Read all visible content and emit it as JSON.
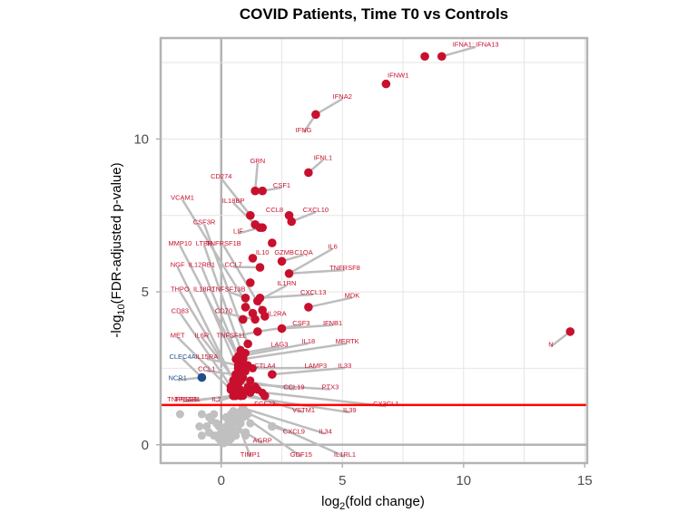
{
  "chart_data": {
    "type": "scatter",
    "subtype": "volcano",
    "title": "COVID Patients, Time T0 vs Controls",
    "xlabel": "log2(fold change)",
    "ylabel": "-log10(FDR-adjusted p-value)",
    "xlim": [
      -2.5,
      15.1
    ],
    "ylim": [
      -0.6,
      13.3
    ],
    "xticks": [
      0,
      5,
      10,
      15
    ],
    "yticks": [
      0,
      5,
      10
    ],
    "grid": true,
    "significance_threshold_y": 1.3,
    "colors": {
      "up": "#c8102e",
      "down": "#1f4e8c",
      "ns": "#c0c0c0",
      "threshold": "#ff0000",
      "connector": "#bdbdbd"
    },
    "points": [
      {
        "label": "IFNA1; IFNA13",
        "x": 9.1,
        "y": 12.7,
        "group": "up",
        "lx": 10.5,
        "ly": 13.1
      },
      {
        "label": "",
        "x": 8.4,
        "y": 12.7,
        "group": "up"
      },
      {
        "label": "IFNW1",
        "x": 6.8,
        "y": 11.8,
        "group": "up",
        "lx": 7.3,
        "ly": 12.1
      },
      {
        "label": "IFNA2",
        "x": 3.9,
        "y": 10.8,
        "group": "up",
        "lx": 5.0,
        "ly": 11.4
      },
      {
        "label": "IFNG",
        "x": 3.9,
        "y": 10.8,
        "group": "up",
        "lx": 3.4,
        "ly": 10.3,
        "hide_point": true
      },
      {
        "label": "IFNL1",
        "x": 3.6,
        "y": 8.9,
        "group": "up",
        "lx": 4.2,
        "ly": 9.4
      },
      {
        "label": "GRN",
        "x": 1.4,
        "y": 8.3,
        "group": "up",
        "lx": 1.5,
        "ly": 9.3
      },
      {
        "label": "CSF1",
        "x": 1.7,
        "y": 8.3,
        "group": "up",
        "lx": 2.5,
        "ly": 8.5
      },
      {
        "label": "CD274",
        "x": 1.2,
        "y": 7.5,
        "group": "up",
        "lx": 0.0,
        "ly": 8.8
      },
      {
        "label": "IL18BP",
        "x": 1.4,
        "y": 7.2,
        "group": "up",
        "lx": 0.5,
        "ly": 8.0
      },
      {
        "label": "CCL8",
        "x": 2.8,
        "y": 7.5,
        "group": "up",
        "lx": 2.2,
        "ly": 7.7
      },
      {
        "label": "CXCL10",
        "x": 2.9,
        "y": 7.3,
        "group": "up",
        "lx": 3.9,
        "ly": 7.7
      },
      {
        "label": "LIF",
        "x": 1.6,
        "y": 7.1,
        "group": "up",
        "lx": 0.7,
        "ly": 7.0
      },
      {
        "label": "",
        "x": 1.7,
        "y": 7.1,
        "group": "up"
      },
      {
        "label": "VCAM1",
        "x": 1.3,
        "y": 4.3,
        "group": "up",
        "lx": -1.6,
        "ly": 8.1
      },
      {
        "label": "CSF3R",
        "x": 1.1,
        "y": 3.3,
        "group": "up",
        "lx": -0.7,
        "ly": 7.3
      },
      {
        "label": "GZMB",
        "x": 2.1,
        "y": 6.6,
        "group": "up",
        "lx": 2.6,
        "ly": 6.3
      },
      {
        "label": "MMP10",
        "x": 0.8,
        "y": 2.7,
        "group": "up",
        "lx": -1.7,
        "ly": 6.6
      },
      {
        "label": "LTBR",
        "x": 0.9,
        "y": 2.9,
        "group": "up",
        "lx": -0.7,
        "ly": 6.6
      },
      {
        "label": "TNFRSF1B",
        "x": 1.7,
        "y": 4.4,
        "group": "up",
        "lx": 0.1,
        "ly": 6.6
      },
      {
        "label": "IL10",
        "x": 1.3,
        "y": 6.1,
        "group": "up",
        "lx": 1.7,
        "ly": 6.3
      },
      {
        "label": "C1QA",
        "x": 2.5,
        "y": 6.0,
        "group": "up",
        "lx": 3.4,
        "ly": 6.3
      },
      {
        "label": "IL6",
        "x": 2.8,
        "y": 5.6,
        "group": "up",
        "lx": 4.6,
        "ly": 6.5
      },
      {
        "label": "NGF",
        "x": 0.5,
        "y": 2.1,
        "group": "up",
        "lx": -1.8,
        "ly": 5.9
      },
      {
        "label": "IL12RB1",
        "x": 0.9,
        "y": 2.5,
        "group": "up",
        "lx": -0.8,
        "ly": 5.9
      },
      {
        "label": "CCL7",
        "x": 1.6,
        "y": 5.8,
        "group": "up",
        "lx": 0.5,
        "ly": 5.9
      },
      {
        "label": "TNFRSF8",
        "x": 2.8,
        "y": 5.6,
        "group": "up",
        "lx": 5.1,
        "ly": 5.8,
        "hide_point": true
      },
      {
        "label": "",
        "x": 1.2,
        "y": 5.3,
        "group": "up"
      },
      {
        "label": "IL1RN",
        "x": 1.5,
        "y": 4.7,
        "group": "up",
        "lx": 2.7,
        "ly": 5.3
      },
      {
        "label": "THPO",
        "x": 0.6,
        "y": 2.0,
        "group": "up",
        "lx": -1.7,
        "ly": 5.1
      },
      {
        "label": "IL18R1",
        "x": 0.8,
        "y": 2.3,
        "group": "up",
        "lx": -0.7,
        "ly": 5.1
      },
      {
        "label": "TNFSF13B",
        "x": 1.0,
        "y": 4.8,
        "group": "up",
        "lx": 0.3,
        "ly": 5.1
      },
      {
        "label": "CXCL13",
        "x": 1.6,
        "y": 4.8,
        "group": "up",
        "lx": 3.8,
        "ly": 5.0
      },
      {
        "label": "MDK",
        "x": 3.6,
        "y": 4.5,
        "group": "up",
        "lx": 5.4,
        "ly": 4.9
      },
      {
        "label": "",
        "x": 1.0,
        "y": 4.5,
        "group": "up"
      },
      {
        "label": "CD83",
        "x": 0.4,
        "y": 1.9,
        "group": "up",
        "lx": -1.7,
        "ly": 4.4
      },
      {
        "label": "CD70",
        "x": 1.4,
        "y": 4.1,
        "group": "up",
        "lx": 0.1,
        "ly": 4.4
      },
      {
        "label": "IL2RA",
        "x": 1.8,
        "y": 4.2,
        "group": "up",
        "lx": 2.3,
        "ly": 4.3
      },
      {
        "label": "",
        "x": 0.9,
        "y": 4.1,
        "group": "up"
      },
      {
        "label": "CSF3",
        "x": 1.5,
        "y": 3.7,
        "group": "up",
        "lx": 3.3,
        "ly": 4.0
      },
      {
        "label": "IFNB1",
        "x": 2.5,
        "y": 3.8,
        "group": "up",
        "lx": 4.6,
        "ly": 4.0
      },
      {
        "label": "MET",
        "x": 0.4,
        "y": 1.8,
        "group": "up",
        "lx": -1.8,
        "ly": 3.6
      },
      {
        "label": "IL6R",
        "x": 0.6,
        "y": 2.1,
        "group": "up",
        "lx": -0.8,
        "ly": 3.6
      },
      {
        "label": "TNFSF11",
        "x": 1.5,
        "y": 3.7,
        "group": "up",
        "lx": 0.4,
        "ly": 3.6,
        "hide_point": true
      },
      {
        "label": "LAG3",
        "x": 0.9,
        "y": 3.0,
        "group": "up",
        "lx": 2.4,
        "ly": 3.3
      },
      {
        "label": "IL18",
        "x": 0.8,
        "y": 2.9,
        "group": "up",
        "lx": 3.6,
        "ly": 3.4
      },
      {
        "label": "MERTK",
        "x": 0.9,
        "y": 2.8,
        "group": "up",
        "lx": 5.2,
        "ly": 3.4
      },
      {
        "label": "CLEC4A",
        "x": -0.8,
        "y": 2.2,
        "group": "down",
        "lx": -1.6,
        "ly": 2.9
      },
      {
        "label": "IL15RA",
        "x": 0.7,
        "y": 2.6,
        "group": "up",
        "lx": -0.6,
        "ly": 2.9
      },
      {
        "label": "CTLA4",
        "x": 1.0,
        "y": 2.6,
        "group": "up",
        "lx": 1.8,
        "ly": 2.6
      },
      {
        "label": "LAMP3",
        "x": 0.7,
        "y": 2.5,
        "group": "up",
        "lx": 3.9,
        "ly": 2.6
      },
      {
        "label": "IL33",
        "x": 2.1,
        "y": 2.3,
        "group": "up",
        "lx": 5.1,
        "ly": 2.6
      },
      {
        "label": "CCL1",
        "x": 0.6,
        "y": 2.3,
        "group": "up",
        "lx": -0.6,
        "ly": 2.5
      },
      {
        "label": "NCR1",
        "x": -0.8,
        "y": 2.2,
        "group": "down",
        "lx": -1.8,
        "ly": 2.2,
        "hide_point": true
      },
      {
        "label": "CCL19",
        "x": 0.8,
        "y": 2.1,
        "group": "up",
        "lx": 3.0,
        "ly": 1.9
      },
      {
        "label": "PTX3",
        "x": 0.7,
        "y": 2.0,
        "group": "up",
        "lx": 4.5,
        "ly": 1.9
      },
      {
        "label": "TNFRSF9",
        "x": 0.5,
        "y": 1.6,
        "group": "up",
        "lx": -1.6,
        "ly": 1.5
      },
      {
        "label": "TPSAB1",
        "x": 0.5,
        "y": 1.6,
        "group": "up",
        "lx": -1.4,
        "ly": 1.5,
        "hide_point": true
      },
      {
        "label": "IL7",
        "x": 0.6,
        "y": 1.6,
        "group": "up",
        "lx": -0.2,
        "ly": 1.5
      },
      {
        "label": "FGF23",
        "x": 1.8,
        "y": 1.6,
        "group": "up",
        "lx": 1.8,
        "ly": 1.35
      },
      {
        "label": "CX3CL1",
        "x": 0.7,
        "y": 1.8,
        "group": "up",
        "lx": 6.8,
        "ly": 1.35
      },
      {
        "label": "VSTM1",
        "x": 0.9,
        "y": 1.7,
        "group": "up",
        "lx": 3.4,
        "ly": 1.15
      },
      {
        "label": "IL39",
        "x": 0.8,
        "y": 1.6,
        "group": "up",
        "lx": 5.3,
        "ly": 1.15
      },
      {
        "label": "CXCL9",
        "x": 2.1,
        "y": 0.6,
        "group": "ns",
        "lx": 3.0,
        "ly": 0.45
      },
      {
        "label": "IL34",
        "x": 0.9,
        "y": 1.2,
        "group": "ns",
        "lx": 4.3,
        "ly": 0.45
      },
      {
        "label": "AGRP",
        "x": 1.0,
        "y": 0.4,
        "group": "ns",
        "lx": 1.7,
        "ly": 0.15
      },
      {
        "label": "TIMP1",
        "x": 0.6,
        "y": 0.9,
        "group": "ns",
        "lx": 1.2,
        "ly": -0.3
      },
      {
        "label": "GDF15",
        "x": 0.8,
        "y": 1.0,
        "group": "ns",
        "lx": 3.3,
        "ly": -0.3
      },
      {
        "label": "IL1RL1",
        "x": 0.9,
        "y": 1.1,
        "group": "ns",
        "lx": 5.1,
        "ly": -0.3
      },
      {
        "label": "N",
        "x": 14.4,
        "y": 3.7,
        "group": "up",
        "lx": 13.6,
        "ly": 3.3
      }
    ],
    "extra_up_points": [
      [
        0.7,
        2.9
      ],
      [
        0.8,
        3.1
      ],
      [
        1.0,
        3.0
      ],
      [
        0.6,
        2.8
      ],
      [
        0.9,
        2.7
      ],
      [
        1.1,
        2.6
      ],
      [
        0.7,
        2.4
      ],
      [
        1.0,
        2.4
      ],
      [
        0.6,
        2.2
      ],
      [
        0.9,
        2.2
      ],
      [
        1.2,
        2.1
      ],
      [
        0.7,
        2.0
      ],
      [
        1.1,
        1.9
      ],
      [
        0.8,
        1.8
      ],
      [
        1.3,
        1.8
      ],
      [
        0.9,
        1.6
      ],
      [
        1.2,
        1.7
      ],
      [
        1.5,
        1.8
      ],
      [
        1.4,
        1.9
      ],
      [
        1.7,
        1.7
      ],
      [
        0.6,
        1.7
      ],
      [
        0.5,
        1.9
      ],
      [
        0.8,
        2.5
      ],
      [
        1.3,
        2.5
      ]
    ],
    "extra_ns_points": [
      [
        -1.7,
        1.0
      ],
      [
        -0.8,
        1.0
      ],
      [
        -0.3,
        1.0
      ],
      [
        -0.4,
        0.8
      ],
      [
        -0.2,
        0.7
      ],
      [
        -0.1,
        0.6
      ],
      [
        -0.8,
        0.3
      ],
      [
        -0.5,
        0.4
      ],
      [
        -0.3,
        0.3
      ],
      [
        -0.1,
        0.2
      ],
      [
        0.0,
        0.1
      ],
      [
        0.1,
        0.05
      ],
      [
        0.2,
        0.2
      ],
      [
        0.3,
        0.3
      ],
      [
        0.4,
        0.5
      ],
      [
        0.5,
        0.7
      ],
      [
        0.6,
        0.9
      ],
      [
        0.7,
        1.0
      ],
      [
        0.8,
        1.1
      ],
      [
        0.5,
        1.1
      ],
      [
        0.4,
        1.0
      ],
      [
        0.3,
        0.8
      ],
      [
        0.2,
        0.6
      ],
      [
        0.1,
        0.4
      ],
      [
        0.4,
        0.2
      ],
      [
        0.6,
        0.3
      ],
      [
        0.7,
        0.5
      ],
      [
        0.8,
        0.7
      ],
      [
        0.9,
        0.9
      ],
      [
        1.1,
        1.0
      ],
      [
        1.2,
        0.7
      ],
      [
        1.0,
        0.3
      ],
      [
        -0.6,
        0.6
      ],
      [
        -0.9,
        0.6
      ],
      [
        -0.5,
        0.9
      ],
      [
        0.0,
        0.4
      ],
      [
        0.2,
        0.9
      ],
      [
        -0.2,
        0.3
      ],
      [
        0.5,
        0.3
      ],
      [
        0.3,
        0.1
      ]
    ]
  }
}
